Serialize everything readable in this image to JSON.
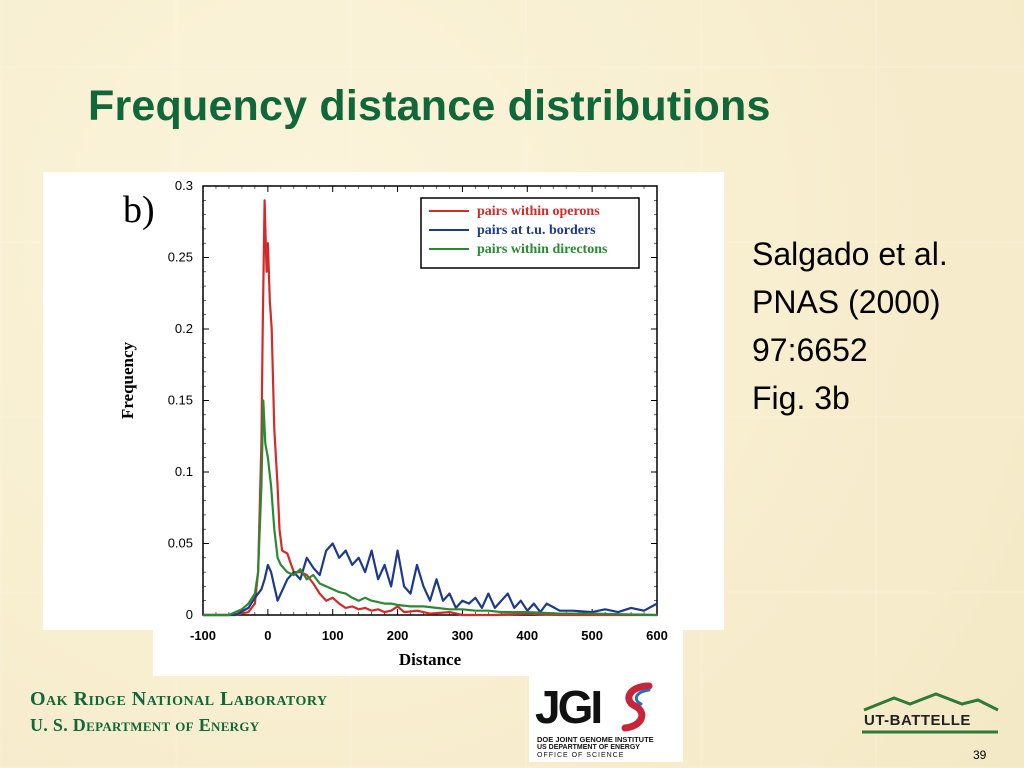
{
  "slide": {
    "title": "Frequency distance distributions",
    "citation": [
      "Salgado et al.",
      "PNAS (2000)",
      "97:6652",
      "Fig. 3b"
    ],
    "page_number": "39"
  },
  "footer": {
    "org_line1": "Oak Ridge National Laboratory",
    "org_line2": "U. S. Department of Energy",
    "jgi_mark": "JGI",
    "jgi_line1": "DOE JOINT GENOME INSTITUTE",
    "jgi_line2": "US DEPARTMENT OF ENERGY",
    "jgi_line3": "OFFICE OF SCIENCE",
    "ut_battelle": "UT-BATTELLE"
  },
  "colors": {
    "title": "#10683a",
    "operons": "#d42a2a",
    "borders": "#1c3a8a",
    "directons": "#2a8a34"
  },
  "chart_data": {
    "type": "line",
    "panel_label": "b)",
    "xlabel": "Distance",
    "ylabel": "Frequency",
    "xlim": [
      -100,
      600
    ],
    "ylim": [
      0,
      0.3
    ],
    "xticks": [
      -100,
      0,
      100,
      200,
      300,
      400,
      500,
      600
    ],
    "yticks": [
      0,
      0.05,
      0.1,
      0.15,
      0.2,
      0.25,
      0.3
    ],
    "ytick_labels": [
      "0",
      "0.05",
      "0.1",
      "0.15",
      "0.2",
      "0.25",
      "0.3"
    ],
    "legend_position": "top-right",
    "series": [
      {
        "name": "pairs within operons",
        "color": "#d42a2a",
        "points": [
          [
            -100,
            0
          ],
          [
            -60,
            0
          ],
          [
            -40,
            0.001
          ],
          [
            -30,
            0.002
          ],
          [
            -20,
            0.008
          ],
          [
            -15,
            0.03
          ],
          [
            -10,
            0.12
          ],
          [
            -8,
            0.2
          ],
          [
            -5,
            0.29
          ],
          [
            -2,
            0.24
          ],
          [
            0,
            0.26
          ],
          [
            3,
            0.22
          ],
          [
            6,
            0.2
          ],
          [
            10,
            0.13
          ],
          [
            15,
            0.09
          ],
          [
            18,
            0.06
          ],
          [
            22,
            0.045
          ],
          [
            30,
            0.043
          ],
          [
            40,
            0.03
          ],
          [
            50,
            0.03
          ],
          [
            60,
            0.028
          ],
          [
            70,
            0.022
          ],
          [
            80,
            0.015
          ],
          [
            90,
            0.01
          ],
          [
            100,
            0.012
          ],
          [
            110,
            0.008
          ],
          [
            120,
            0.005
          ],
          [
            130,
            0.006
          ],
          [
            140,
            0.004
          ],
          [
            150,
            0.005
          ],
          [
            160,
            0.003
          ],
          [
            170,
            0.004
          ],
          [
            180,
            0.002
          ],
          [
            190,
            0.003
          ],
          [
            200,
            0.006
          ],
          [
            210,
            0.002
          ],
          [
            230,
            0.003
          ],
          [
            250,
            0.001
          ],
          [
            280,
            0.002
          ],
          [
            300,
            0
          ],
          [
            350,
            0
          ],
          [
            400,
            0.001
          ],
          [
            450,
            0
          ],
          [
            600,
            0
          ]
        ]
      },
      {
        "name": "pairs at t.u. borders",
        "color": "#1c3a8a",
        "points": [
          [
            -100,
            0
          ],
          [
            -50,
            0
          ],
          [
            -30,
            0.005
          ],
          [
            -20,
            0.012
          ],
          [
            -10,
            0.018
          ],
          [
            -5,
            0.025
          ],
          [
            0,
            0.035
          ],
          [
            5,
            0.03
          ],
          [
            10,
            0.02
          ],
          [
            15,
            0.01
          ],
          [
            20,
            0.015
          ],
          [
            25,
            0.02
          ],
          [
            30,
            0.025
          ],
          [
            40,
            0.03
          ],
          [
            50,
            0.025
          ],
          [
            60,
            0.04
          ],
          [
            70,
            0.033
          ],
          [
            80,
            0.028
          ],
          [
            90,
            0.045
          ],
          [
            100,
            0.05
          ],
          [
            110,
            0.04
          ],
          [
            120,
            0.045
          ],
          [
            130,
            0.035
          ],
          [
            140,
            0.04
          ],
          [
            150,
            0.03
          ],
          [
            160,
            0.045
          ],
          [
            170,
            0.025
          ],
          [
            180,
            0.035
          ],
          [
            190,
            0.02
          ],
          [
            200,
            0.045
          ],
          [
            210,
            0.02
          ],
          [
            220,
            0.015
          ],
          [
            230,
            0.035
          ],
          [
            240,
            0.02
          ],
          [
            250,
            0.01
          ],
          [
            260,
            0.025
          ],
          [
            270,
            0.01
          ],
          [
            280,
            0.015
          ],
          [
            290,
            0.005
          ],
          [
            300,
            0.01
          ],
          [
            310,
            0.008
          ],
          [
            320,
            0.012
          ],
          [
            330,
            0.005
          ],
          [
            340,
            0.015
          ],
          [
            350,
            0.005
          ],
          [
            360,
            0.01
          ],
          [
            370,
            0.015
          ],
          [
            380,
            0.005
          ],
          [
            390,
            0.01
          ],
          [
            400,
            0.003
          ],
          [
            410,
            0.008
          ],
          [
            420,
            0.002
          ],
          [
            430,
            0.008
          ],
          [
            450,
            0.003
          ],
          [
            470,
            0.003
          ],
          [
            500,
            0.002
          ],
          [
            520,
            0.004
          ],
          [
            540,
            0.002
          ],
          [
            560,
            0.005
          ],
          [
            580,
            0.003
          ],
          [
            600,
            0.008
          ]
        ]
      },
      {
        "name": "pairs within directons",
        "color": "#2a8a34",
        "points": [
          [
            -100,
            0
          ],
          [
            -60,
            0
          ],
          [
            -50,
            0.002
          ],
          [
            -40,
            0.004
          ],
          [
            -30,
            0.008
          ],
          [
            -20,
            0.015
          ],
          [
            -15,
            0.03
          ],
          [
            -10,
            0.09
          ],
          [
            -7,
            0.15
          ],
          [
            -4,
            0.12
          ],
          [
            0,
            0.11
          ],
          [
            5,
            0.09
          ],
          [
            10,
            0.06
          ],
          [
            15,
            0.04
          ],
          [
            20,
            0.035
          ],
          [
            30,
            0.03
          ],
          [
            40,
            0.028
          ],
          [
            50,
            0.032
          ],
          [
            60,
            0.025
          ],
          [
            70,
            0.028
          ],
          [
            80,
            0.022
          ],
          [
            90,
            0.02
          ],
          [
            100,
            0.018
          ],
          [
            110,
            0.016
          ],
          [
            120,
            0.015
          ],
          [
            130,
            0.012
          ],
          [
            140,
            0.01
          ],
          [
            150,
            0.012
          ],
          [
            160,
            0.01
          ],
          [
            170,
            0.009
          ],
          [
            180,
            0.008
          ],
          [
            190,
            0.008
          ],
          [
            200,
            0.007
          ],
          [
            220,
            0.006
          ],
          [
            240,
            0.006
          ],
          [
            260,
            0.005
          ],
          [
            280,
            0.004
          ],
          [
            300,
            0.004
          ],
          [
            320,
            0.003
          ],
          [
            340,
            0.003
          ],
          [
            360,
            0.002
          ],
          [
            380,
            0.002
          ],
          [
            400,
            0.002
          ],
          [
            450,
            0.001
          ],
          [
            500,
            0.001
          ],
          [
            600,
            0
          ]
        ]
      }
    ]
  }
}
